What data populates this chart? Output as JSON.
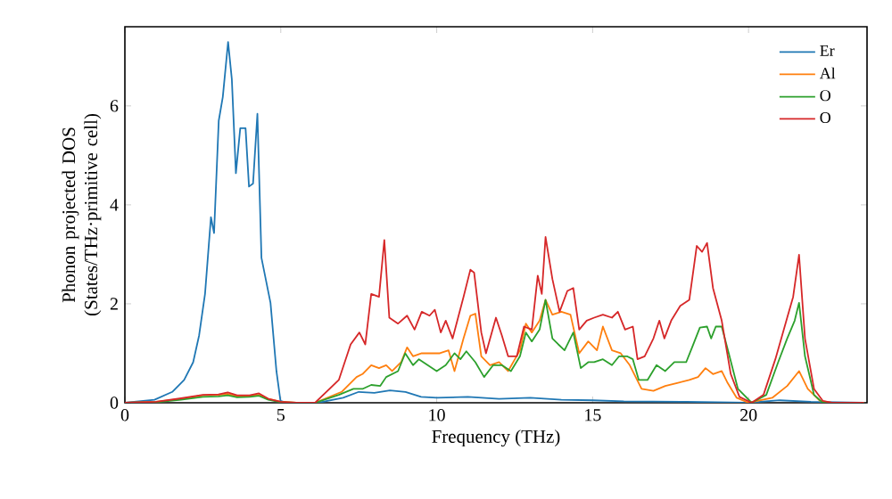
{
  "chart_data": {
    "type": "line",
    "xlabel": "Frequency (THz)",
    "ylabel": "Phonon projected DOS (States/THz·primitive cell)",
    "xlim": [
      0,
      23.8
    ],
    "ylim": [
      0,
      7.6
    ],
    "xticks": [
      0,
      5,
      10,
      15,
      20
    ],
    "yticks": [
      0,
      2,
      4,
      6
    ],
    "legend": "top right",
    "series": [
      {
        "name": "Er",
        "color": "#1f77b4",
        "x": [
          0,
          0.95,
          1.52,
          1.9,
          2.19,
          2.38,
          2.57,
          2.76,
          2.86,
          3.01,
          3.14,
          3.31,
          3.43,
          3.56,
          3.7,
          3.87,
          3.98,
          4.11,
          4.25,
          4.38,
          4.67,
          4.86,
          4.99,
          5.2,
          6.2,
          7,
          7.5,
          8,
          8.5,
          9,
          9.5,
          10,
          11,
          12,
          13,
          14,
          15,
          16,
          18,
          20,
          21,
          22,
          23.7
        ],
        "values": [
          0,
          0.06,
          0.22,
          0.46,
          0.82,
          1.36,
          2.2,
          3.75,
          3.43,
          5.7,
          6.18,
          7.29,
          6.54,
          4.64,
          5.55,
          5.55,
          4.37,
          4.43,
          5.84,
          2.93,
          2.02,
          0.64,
          0.04,
          0,
          0,
          0.1,
          0.22,
          0.2,
          0.25,
          0.22,
          0.12,
          0.1,
          0.12,
          0.08,
          0.1,
          0.06,
          0.05,
          0.03,
          0.02,
          0,
          0.05,
          0.02,
          0
        ]
      },
      {
        "name": "Al",
        "color": "#ff7f0e",
        "x": [
          0,
          1,
          1.8,
          2.5,
          3.0,
          3.3,
          3.6,
          4.0,
          4.3,
          4.6,
          5.0,
          5.5,
          6.1,
          6.95,
          7.43,
          7.62,
          7.9,
          8.15,
          8.38,
          8.57,
          8.86,
          9.05,
          9.24,
          9.52,
          9.81,
          10.1,
          10.38,
          10.57,
          10.86,
          11.08,
          11.24,
          11.43,
          11.71,
          12.0,
          12.29,
          12.67,
          12.86,
          13.05,
          13.3,
          13.49,
          13.71,
          14.0,
          14.29,
          14.57,
          14.86,
          15.14,
          15.33,
          15.62,
          15.9,
          16.19,
          16.38,
          16.57,
          16.95,
          17.33,
          17.71,
          18.1,
          18.38,
          18.62,
          18.86,
          19.14,
          19.33,
          19.62,
          20.0,
          20.76,
          21.24,
          21.62,
          21.9,
          22.29,
          22.67,
          23.7
        ],
        "values": [
          0,
          0.02,
          0.08,
          0.15,
          0.16,
          0.18,
          0.13,
          0.14,
          0.16,
          0.08,
          0.02,
          0,
          0,
          0.22,
          0.52,
          0.58,
          0.76,
          0.7,
          0.76,
          0.64,
          0.82,
          1.12,
          0.94,
          1.0,
          1.0,
          1.0,
          1.06,
          0.64,
          1.3,
          1.76,
          1.8,
          0.94,
          0.76,
          0.82,
          0.64,
          1.06,
          1.6,
          1.42,
          1.66,
          2.08,
          1.78,
          1.84,
          1.78,
          1.0,
          1.24,
          1.06,
          1.54,
          1.06,
          1.0,
          0.76,
          0.52,
          0.28,
          0.24,
          0.34,
          0.4,
          0.46,
          0.52,
          0.7,
          0.58,
          0.64,
          0.4,
          0.1,
          0,
          0.1,
          0.34,
          0.64,
          0.28,
          0.04,
          0,
          0
        ]
      },
      {
        "name": "O",
        "color": "#2ca02c",
        "x": [
          0,
          1,
          1.8,
          2.5,
          3.0,
          3.3,
          3.6,
          4.0,
          4.3,
          4.6,
          5.0,
          5.5,
          6.1,
          6.86,
          7.33,
          7.62,
          7.9,
          8.19,
          8.38,
          8.76,
          8.99,
          9.24,
          9.43,
          9.71,
          10.0,
          10.29,
          10.57,
          10.76,
          10.95,
          11.24,
          11.52,
          11.81,
          12.09,
          12.38,
          12.67,
          12.86,
          13.05,
          13.3,
          13.49,
          13.71,
          13.9,
          14.1,
          14.38,
          14.62,
          14.86,
          15.05,
          15.33,
          15.62,
          15.85,
          16.1,
          16.29,
          16.48,
          16.76,
          17.05,
          17.33,
          17.62,
          18.0,
          18.19,
          18.44,
          18.67,
          18.8,
          18.95,
          19.14,
          19.39,
          19.66,
          20.1,
          20.57,
          20.95,
          21.24,
          21.48,
          21.62,
          21.81,
          22.1,
          22.38,
          23.7
        ],
        "values": [
          0,
          0.01,
          0.06,
          0.12,
          0.13,
          0.15,
          0.11,
          0.12,
          0.14,
          0.06,
          0.01,
          0,
          0,
          0.16,
          0.28,
          0.28,
          0.36,
          0.34,
          0.52,
          0.64,
          1.0,
          0.76,
          0.88,
          0.76,
          0.64,
          0.76,
          1.0,
          0.88,
          1.04,
          0.82,
          0.52,
          0.76,
          0.76,
          0.64,
          0.94,
          1.42,
          1.24,
          1.48,
          2.08,
          1.3,
          1.18,
          1.06,
          1.42,
          0.7,
          0.82,
          0.82,
          0.88,
          0.76,
          0.94,
          0.94,
          0.88,
          0.46,
          0.46,
          0.76,
          0.64,
          0.82,
          0.82,
          1.12,
          1.52,
          1.54,
          1.3,
          1.54,
          1.54,
          0.94,
          0.28,
          0,
          0.16,
          0.82,
          1.3,
          1.66,
          2.02,
          0.94,
          0.16,
          0,
          0
        ]
      },
      {
        "name": "O",
        "color": "#d62728",
        "x": [
          0,
          1,
          1.8,
          2.5,
          3.0,
          3.3,
          3.6,
          4.0,
          4.3,
          4.6,
          5.0,
          5.5,
          6.1,
          6.86,
          7.24,
          7.52,
          7.71,
          7.9,
          8.15,
          8.32,
          8.48,
          8.76,
          9.05,
          9.29,
          9.52,
          9.77,
          9.94,
          10.13,
          10.29,
          10.51,
          10.86,
          11.08,
          11.2,
          11.43,
          11.58,
          11.9,
          12.09,
          12.29,
          12.57,
          12.8,
          13.05,
          13.24,
          13.37,
          13.49,
          13.71,
          13.94,
          14.19,
          14.38,
          14.57,
          14.81,
          15.05,
          15.33,
          15.62,
          15.81,
          16.04,
          16.29,
          16.44,
          16.67,
          16.95,
          17.14,
          17.3,
          17.52,
          17.81,
          18.1,
          18.34,
          18.51,
          18.67,
          18.86,
          19.14,
          19.43,
          19.71,
          20.1,
          20.48,
          20.86,
          21.24,
          21.43,
          21.62,
          21.81,
          22.1,
          22.38,
          22.67,
          23.7
        ],
        "values": [
          0,
          0.02,
          0.09,
          0.16,
          0.17,
          0.21,
          0.15,
          0.15,
          0.19,
          0.08,
          0.02,
          0,
          0,
          0.46,
          1.18,
          1.42,
          1.18,
          2.2,
          2.14,
          3.29,
          1.72,
          1.6,
          1.76,
          1.48,
          1.84,
          1.76,
          1.88,
          1.42,
          1.66,
          1.3,
          2.14,
          2.69,
          2.63,
          1.42,
          1.0,
          1.72,
          1.36,
          0.94,
          0.94,
          1.54,
          1.48,
          2.57,
          2.2,
          3.35,
          2.5,
          1.84,
          2.26,
          2.32,
          1.48,
          1.66,
          1.72,
          1.78,
          1.72,
          1.84,
          1.48,
          1.54,
          0.88,
          0.94,
          1.3,
          1.66,
          1.3,
          1.66,
          1.96,
          2.08,
          3.17,
          3.05,
          3.23,
          2.32,
          1.66,
          0.58,
          0.12,
          0,
          0.16,
          0.88,
          1.72,
          2.14,
          2.99,
          1.3,
          0.28,
          0.04,
          0,
          0
        ]
      }
    ]
  }
}
